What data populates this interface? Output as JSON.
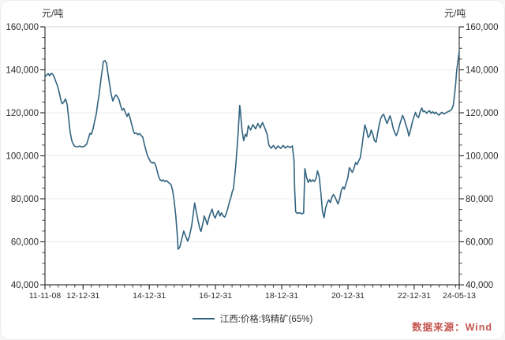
{
  "figure": {
    "unit_left": "元/吨",
    "unit_right": "元/吨",
    "legend": {
      "label": "江西:价格:钨精矿(65%)"
    },
    "source": {
      "text": "数据来源：Wind"
    }
  },
  "colors": {
    "line": "#31637f",
    "grid": "#ececec",
    "top_border": "#d9d9d9",
    "axis": "#3c3c3c",
    "tick_text": "#2b2b2b",
    "source_text": "#c4554e",
    "background": "#ffffff"
  },
  "chart_data": {
    "type": "line",
    "title": "",
    "xlabel": "",
    "ylabel": "元/吨",
    "series_name": "江西:价格:钨精矿(65%)",
    "legend_position": "bottom-center",
    "grid": "horizontal-only",
    "xlim": [
      2011.85,
      2024.36
    ],
    "ylim": [
      40000,
      160000
    ],
    "y_minor_step": 5000,
    "x_minor_step": 0.25,
    "y_ticks": [
      {
        "value": 40000,
        "label": "40,000"
      },
      {
        "value": 60000,
        "label": "60,000"
      },
      {
        "value": 80000,
        "label": "80,000"
      },
      {
        "value": 100000,
        "label": "100,000"
      },
      {
        "value": 120000,
        "label": "120,000"
      },
      {
        "value": 140000,
        "label": "140,000"
      },
      {
        "value": 160000,
        "label": "160,000"
      }
    ],
    "x_ticks": [
      {
        "label": "11-11-08",
        "year": 2011.85
      },
      {
        "label": "12-12-31",
        "year": 2013.0
      },
      {
        "label": "14-12-31",
        "year": 2015.0
      },
      {
        "label": "16-12-31",
        "year": 2017.0
      },
      {
        "label": "18-12-31",
        "year": 2019.0
      },
      {
        "label": "20-12-31",
        "year": 2021.0
      },
      {
        "label": "22-12-31",
        "year": 2023.0
      },
      {
        "label": "24-05-13",
        "year": 2024.36
      }
    ],
    "points": [
      [
        2011.85,
        136800
      ],
      [
        2011.9,
        137600
      ],
      [
        2011.95,
        138200
      ],
      [
        2011.99,
        137200
      ],
      [
        2012.04,
        138400
      ],
      [
        2012.09,
        137800
      ],
      [
        2012.14,
        136200
      ],
      [
        2012.18,
        134500
      ],
      [
        2012.23,
        132500
      ],
      [
        2012.28,
        129500
      ],
      [
        2012.33,
        126000
      ],
      [
        2012.37,
        124200
      ],
      [
        2012.42,
        125000
      ],
      [
        2012.47,
        126500
      ],
      [
        2012.52,
        124000
      ],
      [
        2012.56,
        118000
      ],
      [
        2012.61,
        111000
      ],
      [
        2012.66,
        107000
      ],
      [
        2012.71,
        105200
      ],
      [
        2012.75,
        104400
      ],
      [
        2012.83,
        104200
      ],
      [
        2012.9,
        104500
      ],
      [
        2012.97,
        104100
      ],
      [
        2013.04,
        104400
      ],
      [
        2013.11,
        105500
      ],
      [
        2013.16,
        108000
      ],
      [
        2013.21,
        110500
      ],
      [
        2013.25,
        110000
      ],
      [
        2013.3,
        112500
      ],
      [
        2013.35,
        116000
      ],
      [
        2013.4,
        119500
      ],
      [
        2013.44,
        124000
      ],
      [
        2013.49,
        129000
      ],
      [
        2013.54,
        135500
      ],
      [
        2013.59,
        141000
      ],
      [
        2013.61,
        143800
      ],
      [
        2013.66,
        144300
      ],
      [
        2013.71,
        143000
      ],
      [
        2013.75,
        138500
      ],
      [
        2013.8,
        133500
      ],
      [
        2013.85,
        128500
      ],
      [
        2013.9,
        125500
      ],
      [
        2013.94,
        127000
      ],
      [
        2013.99,
        128300
      ],
      [
        2014.04,
        127500
      ],
      [
        2014.09,
        126000
      ],
      [
        2014.13,
        123500
      ],
      [
        2014.18,
        121200
      ],
      [
        2014.23,
        122000
      ],
      [
        2014.28,
        120000
      ],
      [
        2014.33,
        118300
      ],
      [
        2014.37,
        119800
      ],
      [
        2014.42,
        117500
      ],
      [
        2014.47,
        114500
      ],
      [
        2014.52,
        111500
      ],
      [
        2014.56,
        110300
      ],
      [
        2014.61,
        110600
      ],
      [
        2014.66,
        109800
      ],
      [
        2014.71,
        110400
      ],
      [
        2014.75,
        109500
      ],
      [
        2014.8,
        108800
      ],
      [
        2014.85,
        105500
      ],
      [
        2014.9,
        102500
      ],
      [
        2014.94,
        100300
      ],
      [
        2014.99,
        98600
      ],
      [
        2015.04,
        97200
      ],
      [
        2015.09,
        96600
      ],
      [
        2015.13,
        97000
      ],
      [
        2015.18,
        96200
      ],
      [
        2015.23,
        93500
      ],
      [
        2015.28,
        90500
      ],
      [
        2015.32,
        89000
      ],
      [
        2015.37,
        88300
      ],
      [
        2015.42,
        88800
      ],
      [
        2015.47,
        88000
      ],
      [
        2015.52,
        88500
      ],
      [
        2015.56,
        87800
      ],
      [
        2015.61,
        87200
      ],
      [
        2015.66,
        86500
      ],
      [
        2015.71,
        83500
      ],
      [
        2015.75,
        79000
      ],
      [
        2015.8,
        72000
      ],
      [
        2015.85,
        62000
      ],
      [
        2015.87,
        56500
      ],
      [
        2015.92,
        57500
      ],
      [
        2015.97,
        60500
      ],
      [
        2016.04,
        65000
      ],
      [
        2016.09,
        63000
      ],
      [
        2016.16,
        60300
      ],
      [
        2016.21,
        62500
      ],
      [
        2016.28,
        67500
      ],
      [
        2016.32,
        72000
      ],
      [
        2016.37,
        78000
      ],
      [
        2016.42,
        74000
      ],
      [
        2016.47,
        70000
      ],
      [
        2016.52,
        66500
      ],
      [
        2016.56,
        64800
      ],
      [
        2016.61,
        68000
      ],
      [
        2016.66,
        72000
      ],
      [
        2016.71,
        70000
      ],
      [
        2016.75,
        68000
      ],
      [
        2016.8,
        71000
      ],
      [
        2016.85,
        73500
      ],
      [
        2016.9,
        75200
      ],
      [
        2016.94,
        72500
      ],
      [
        2016.99,
        71000
      ],
      [
        2017.04,
        73000
      ],
      [
        2017.09,
        74500
      ],
      [
        2017.13,
        72000
      ],
      [
        2017.18,
        73500
      ],
      [
        2017.23,
        72000
      ],
      [
        2017.28,
        71500
      ],
      [
        2017.32,
        73000
      ],
      [
        2017.37,
        75500
      ],
      [
        2017.42,
        78500
      ],
      [
        2017.47,
        81000
      ],
      [
        2017.51,
        83500
      ],
      [
        2017.54,
        84500
      ],
      [
        2017.61,
        95000
      ],
      [
        2017.68,
        110000
      ],
      [
        2017.73,
        123500
      ],
      [
        2017.75,
        121000
      ],
      [
        2017.8,
        112000
      ],
      [
        2017.85,
        107000
      ],
      [
        2017.9,
        110000
      ],
      [
        2017.94,
        109000
      ],
      [
        2017.99,
        114000
      ],
      [
        2018.06,
        112000
      ],
      [
        2018.13,
        114500
      ],
      [
        2018.21,
        112500
      ],
      [
        2018.28,
        115000
      ],
      [
        2018.35,
        113000
      ],
      [
        2018.42,
        115500
      ],
      [
        2018.49,
        112800
      ],
      [
        2018.56,
        110000
      ],
      [
        2018.61,
        105000
      ],
      [
        2018.68,
        103500
      ],
      [
        2018.75,
        104800
      ],
      [
        2018.82,
        103200
      ],
      [
        2018.89,
        104600
      ],
      [
        2018.97,
        103400
      ],
      [
        2019.04,
        104800
      ],
      [
        2019.11,
        103600
      ],
      [
        2019.18,
        104500
      ],
      [
        2019.25,
        103800
      ],
      [
        2019.32,
        104600
      ],
      [
        2019.37,
        98000
      ],
      [
        2019.39,
        85000
      ],
      [
        2019.42,
        74000
      ],
      [
        2019.47,
        73200
      ],
      [
        2019.54,
        73500
      ],
      [
        2019.61,
        73000
      ],
      [
        2019.66,
        73400
      ],
      [
        2019.7,
        94000
      ],
      [
        2019.75,
        90000
      ],
      [
        2019.8,
        87600
      ],
      [
        2019.85,
        89000
      ],
      [
        2019.89,
        88000
      ],
      [
        2019.94,
        88800
      ],
      [
        2019.99,
        88000
      ],
      [
        2020.04,
        89600
      ],
      [
        2020.08,
        93000
      ],
      [
        2020.13,
        90500
      ],
      [
        2020.18,
        83000
      ],
      [
        2020.23,
        74000
      ],
      [
        2020.28,
        71200
      ],
      [
        2020.32,
        75500
      ],
      [
        2020.37,
        78000
      ],
      [
        2020.42,
        79500
      ],
      [
        2020.47,
        78200
      ],
      [
        2020.51,
        80500
      ],
      [
        2020.56,
        82000
      ],
      [
        2020.61,
        80800
      ],
      [
        2020.66,
        79000
      ],
      [
        2020.7,
        77600
      ],
      [
        2020.75,
        80000
      ],
      [
        2020.8,
        84000
      ],
      [
        2020.85,
        85500
      ],
      [
        2020.89,
        84500
      ],
      [
        2020.94,
        87000
      ],
      [
        2020.99,
        89500
      ],
      [
        2021.04,
        94500
      ],
      [
        2021.08,
        93500
      ],
      [
        2021.13,
        92300
      ],
      [
        2021.18,
        94000
      ],
      [
        2021.23,
        96800
      ],
      [
        2021.28,
        96000
      ],
      [
        2021.32,
        97500
      ],
      [
        2021.37,
        99000
      ],
      [
        2021.42,
        104000
      ],
      [
        2021.47,
        110000
      ],
      [
        2021.51,
        114400
      ],
      [
        2021.56,
        112000
      ],
      [
        2021.61,
        108500
      ],
      [
        2021.66,
        109500
      ],
      [
        2021.7,
        112000
      ],
      [
        2021.75,
        110000
      ],
      [
        2021.8,
        107000
      ],
      [
        2021.85,
        106400
      ],
      [
        2021.89,
        110000
      ],
      [
        2021.94,
        114000
      ],
      [
        2021.99,
        117400
      ],
      [
        2022.04,
        118800
      ],
      [
        2022.08,
        119300
      ],
      [
        2022.13,
        117000
      ],
      [
        2022.18,
        115000
      ],
      [
        2022.23,
        117000
      ],
      [
        2022.27,
        118600
      ],
      [
        2022.32,
        116000
      ],
      [
        2022.37,
        112500
      ],
      [
        2022.42,
        110500
      ],
      [
        2022.46,
        109400
      ],
      [
        2022.51,
        111500
      ],
      [
        2022.56,
        114500
      ],
      [
        2022.61,
        117000
      ],
      [
        2022.65,
        118800
      ],
      [
        2022.7,
        117000
      ],
      [
        2022.75,
        114500
      ],
      [
        2022.8,
        112000
      ],
      [
        2022.84,
        109200
      ],
      [
        2022.89,
        112000
      ],
      [
        2022.94,
        115500
      ],
      [
        2022.99,
        118000
      ],
      [
        2023.04,
        120200
      ],
      [
        2023.08,
        118500
      ],
      [
        2023.13,
        117800
      ],
      [
        2023.18,
        120500
      ],
      [
        2023.23,
        122200
      ],
      [
        2023.27,
        120500
      ],
      [
        2023.32,
        120800
      ],
      [
        2023.37,
        119800
      ],
      [
        2023.42,
        120500
      ],
      [
        2023.46,
        121000
      ],
      [
        2023.51,
        119800
      ],
      [
        2023.56,
        120500
      ],
      [
        2023.61,
        119600
      ],
      [
        2023.65,
        120300
      ],
      [
        2023.7,
        119500
      ],
      [
        2023.75,
        118900
      ],
      [
        2023.8,
        119800
      ],
      [
        2023.84,
        120200
      ],
      [
        2023.89,
        119500
      ],
      [
        2023.94,
        119800
      ],
      [
        2023.99,
        120300
      ],
      [
        2024.03,
        120600
      ],
      [
        2024.08,
        120900
      ],
      [
        2024.13,
        121500
      ],
      [
        2024.18,
        123500
      ],
      [
        2024.2,
        126000
      ],
      [
        2024.23,
        130000
      ],
      [
        2024.25,
        133000
      ],
      [
        2024.28,
        139000
      ],
      [
        2024.32,
        144000
      ],
      [
        2024.36,
        148500
      ]
    ]
  }
}
